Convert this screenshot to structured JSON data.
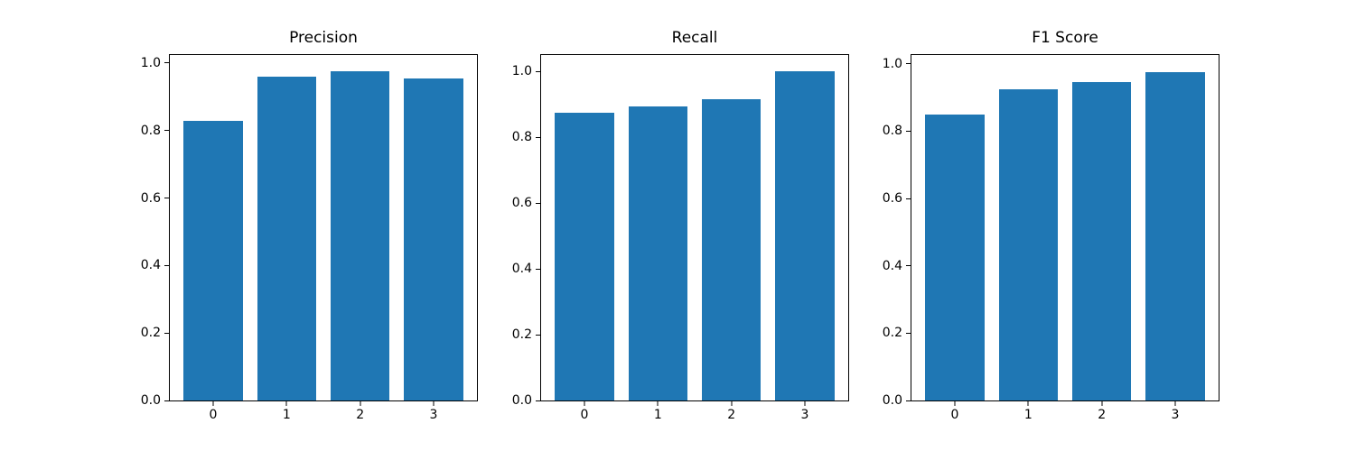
{
  "figure": {
    "background": "#ffffff",
    "axis_color": "#000000",
    "text_color": "#000000"
  },
  "chart_data": [
    {
      "type": "bar",
      "title": "Precision",
      "categories": [
        "0",
        "1",
        "2",
        "3"
      ],
      "values": [
        0.83,
        0.96,
        0.975,
        0.955
      ],
      "xlabel": "",
      "ylabel": "",
      "yticks": [
        0.0,
        0.2,
        0.4,
        0.6,
        0.8,
        1.0
      ],
      "ylim": [
        0,
        1.024
      ],
      "bar_color": "#1f77b4",
      "grid": false,
      "legend": null
    },
    {
      "type": "bar",
      "title": "Recall",
      "categories": [
        "0",
        "1",
        "2",
        "3"
      ],
      "values": [
        0.875,
        0.895,
        0.915,
        1.0
      ],
      "xlabel": "",
      "ylabel": "",
      "yticks": [
        0.0,
        0.2,
        0.4,
        0.6,
        0.8,
        1.0
      ],
      "ylim": [
        0,
        1.05
      ],
      "bar_color": "#1f77b4",
      "grid": false,
      "legend": null
    },
    {
      "type": "bar",
      "title": "F1 Score",
      "categories": [
        "0",
        "1",
        "2",
        "3"
      ],
      "values": [
        0.85,
        0.925,
        0.945,
        0.975
      ],
      "xlabel": "",
      "ylabel": "",
      "yticks": [
        0.0,
        0.2,
        0.4,
        0.6,
        0.8,
        1.0
      ],
      "ylim": [
        0,
        1.026
      ],
      "bar_color": "#1f77b4",
      "grid": false,
      "legend": null
    }
  ]
}
